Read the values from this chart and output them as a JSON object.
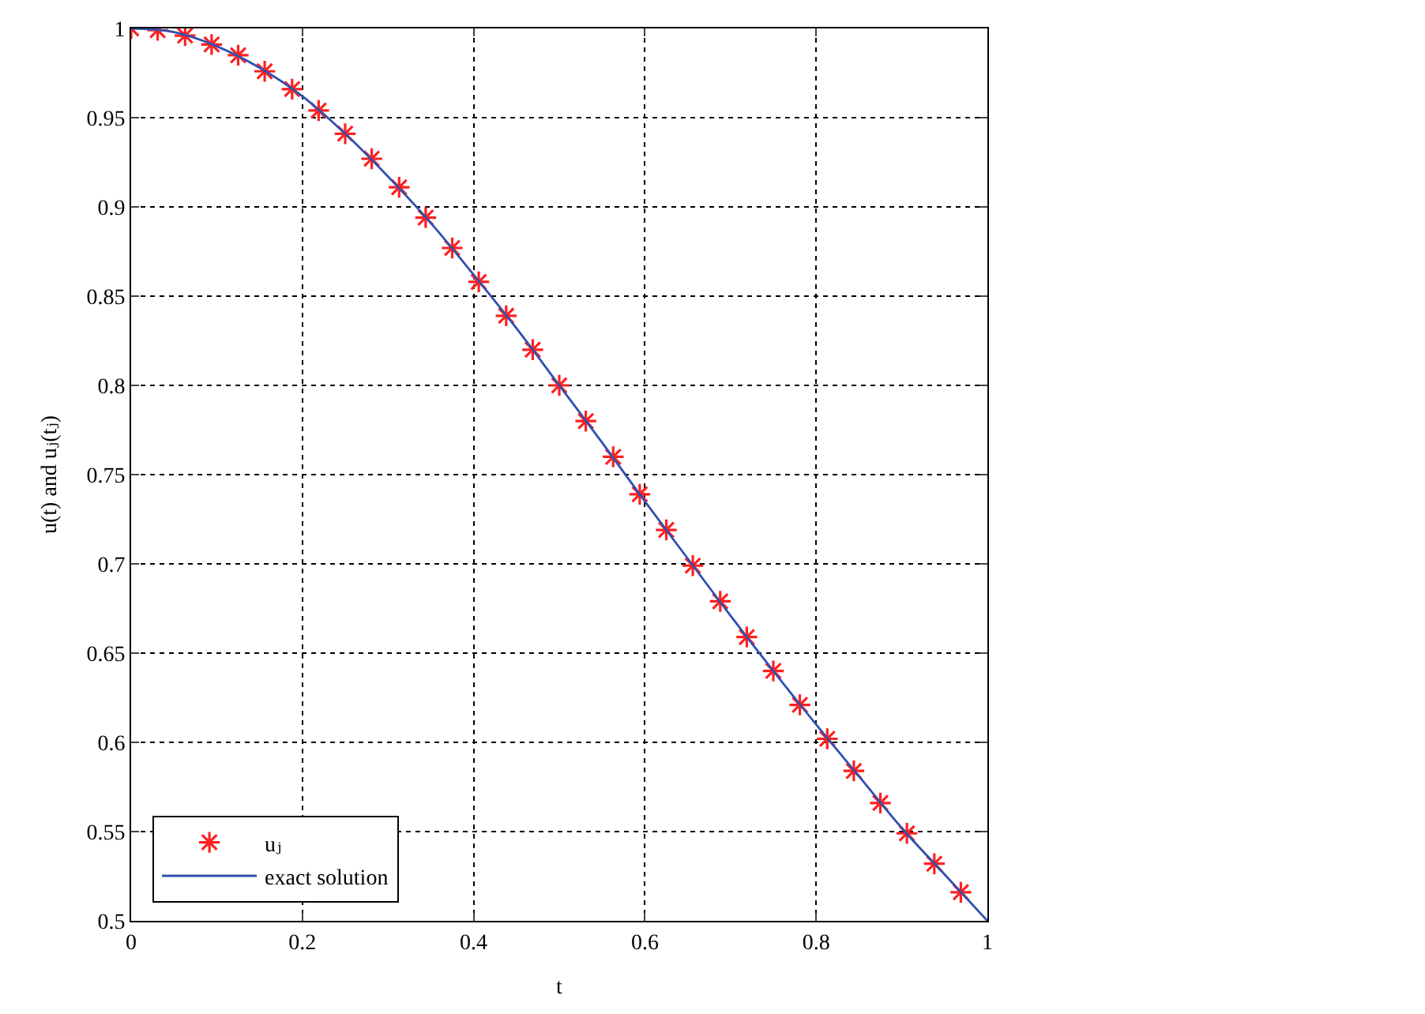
{
  "chart_data": {
    "type": "line",
    "xlabel": "t",
    "ylabel": "u(t) and uⱼ(tⱼ)",
    "series": [
      {
        "name": "uⱼ",
        "type": "scatter",
        "marker": "cross",
        "color": "#ff2020",
        "x": [
          0,
          0.031,
          0.063,
          0.094,
          0.125,
          0.156,
          0.188,
          0.219,
          0.25,
          0.281,
          0.313,
          0.344,
          0.375,
          0.406,
          0.438,
          0.469,
          0.5,
          0.531,
          0.563,
          0.594,
          0.625,
          0.656,
          0.688,
          0.719,
          0.75,
          0.781,
          0.813,
          0.844,
          0.875,
          0.906,
          0.938,
          0.969
        ],
        "values": [
          1,
          0.999,
          0.996,
          0.991,
          0.985,
          0.976,
          0.966,
          0.954,
          0.941,
          0.927,
          0.911,
          0.894,
          0.877,
          0.858,
          0.839,
          0.82,
          0.8,
          0.78,
          0.76,
          0.739,
          0.719,
          0.699,
          0.679,
          0.659,
          0.64,
          0.621,
          0.602,
          0.584,
          0.566,
          0.549,
          0.532,
          0.516
        ]
      },
      {
        "name": "exact solution",
        "line_style": "solid",
        "color": "#3050b0",
        "x": [
          0,
          0.05,
          0.1,
          0.15,
          0.2,
          0.25,
          0.3,
          0.35,
          0.4,
          0.45,
          0.5,
          0.55,
          0.6,
          0.65,
          0.7,
          0.75,
          0.8,
          0.85,
          0.9,
          0.95,
          1
        ],
        "values": [
          1,
          0.998,
          0.99,
          0.978,
          0.962,
          0.941,
          0.917,
          0.891,
          0.862,
          0.832,
          0.8,
          0.768,
          0.735,
          0.703,
          0.671,
          0.64,
          0.61,
          0.581,
          0.552,
          0.526,
          0.5
        ]
      }
    ],
    "xlim": [
      0,
      1
    ],
    "xticks": [
      0,
      0.2,
      0.4,
      0.6,
      0.8,
      1
    ],
    "ylim": [
      0.5,
      1
    ],
    "yticks": [
      0.5,
      0.55,
      0.6,
      0.65,
      0.7,
      0.75,
      0.8,
      0.85,
      0.9,
      0.95,
      1
    ],
    "grid": true,
    "legend": "bottom left"
  }
}
